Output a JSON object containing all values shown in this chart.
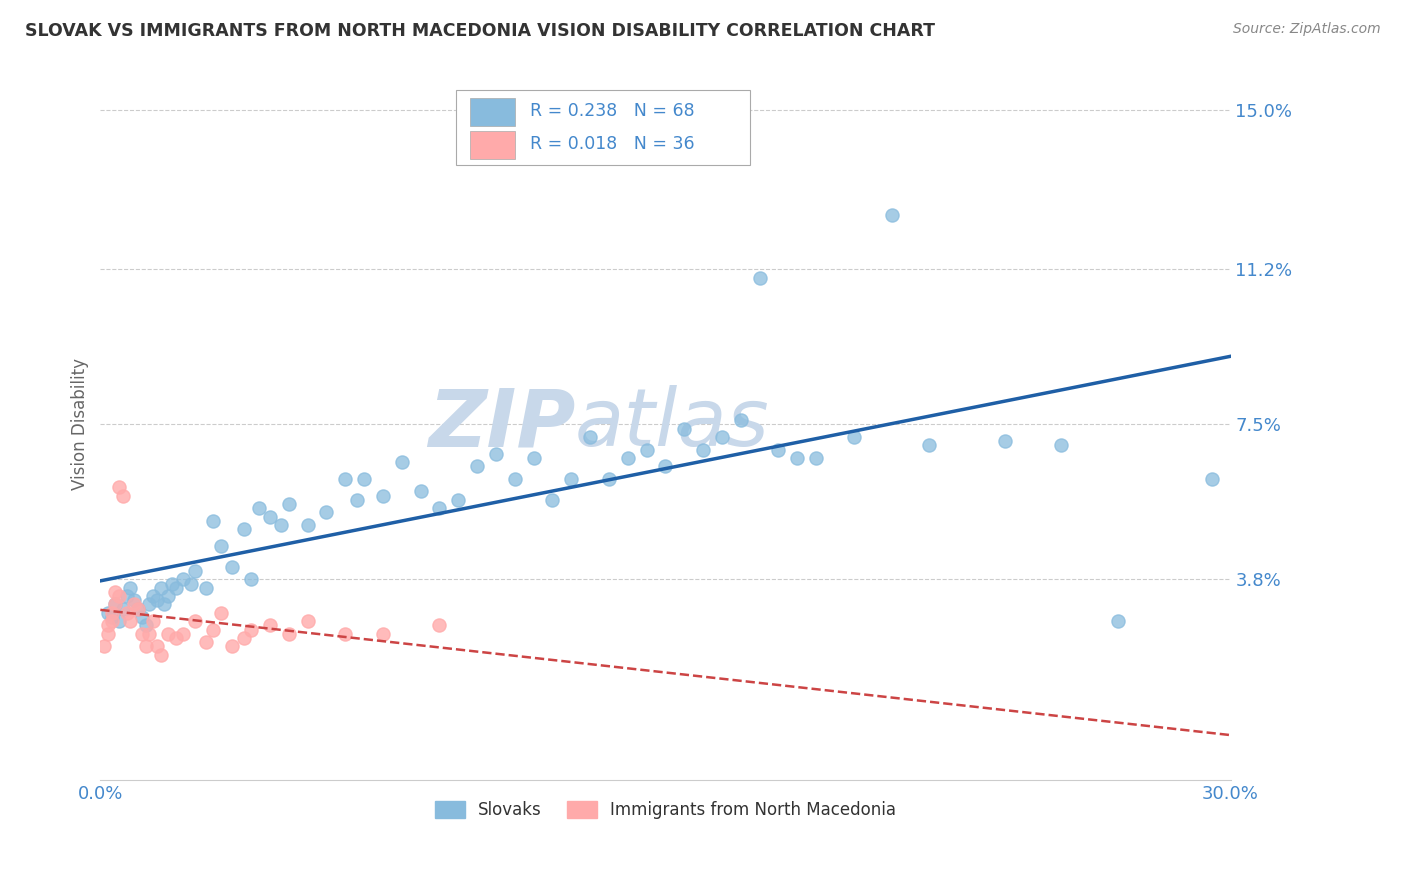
{
  "title": "SLOVAK VS IMMIGRANTS FROM NORTH MACEDONIA VISION DISABILITY CORRELATION CHART",
  "source": "Source: ZipAtlas.com",
  "ylabel": "Vision Disability",
  "xlim": [
    0.0,
    0.3
  ],
  "ylim": [
    -0.01,
    0.16
  ],
  "yticks": [
    0.038,
    0.075,
    0.112,
    0.15
  ],
  "ytick_labels": [
    "3.8%",
    "7.5%",
    "11.2%",
    "15.0%"
  ],
  "xticks": [
    0.0,
    0.3
  ],
  "xtick_labels": [
    "0.0%",
    "30.0%"
  ],
  "grid_color": "#cccccc",
  "background_color": "#ffffff",
  "series1_color": "#88bbdd",
  "series2_color": "#ffaaaa",
  "series1_label": "Slovaks",
  "series2_label": "Immigrants from North Macedonia",
  "series1_R": "0.238",
  "series1_N": "68",
  "series2_R": "0.018",
  "series2_N": "36",
  "series1_line_color": "#1f5fa6",
  "series2_line_color": "#cc4444",
  "title_color": "#333333",
  "axis_label_color": "#666666",
  "tick_label_color": "#4488cc",
  "watermark_color": "#c8d8ea",
  "s1x": [
    0.002,
    0.003,
    0.004,
    0.005,
    0.006,
    0.007,
    0.008,
    0.009,
    0.01,
    0.011,
    0.012,
    0.013,
    0.014,
    0.015,
    0.016,
    0.017,
    0.018,
    0.019,
    0.02,
    0.022,
    0.024,
    0.025,
    0.028,
    0.03,
    0.032,
    0.035,
    0.038,
    0.04,
    0.042,
    0.045,
    0.048,
    0.05,
    0.055,
    0.06,
    0.065,
    0.068,
    0.07,
    0.075,
    0.08,
    0.085,
    0.09,
    0.095,
    0.1,
    0.105,
    0.11,
    0.115,
    0.12,
    0.125,
    0.13,
    0.135,
    0.14,
    0.145,
    0.15,
    0.155,
    0.16,
    0.165,
    0.17,
    0.175,
    0.18,
    0.185,
    0.19,
    0.2,
    0.21,
    0.22,
    0.24,
    0.255,
    0.27,
    0.295
  ],
  "s1y": [
    0.03,
    0.029,
    0.032,
    0.028,
    0.031,
    0.034,
    0.036,
    0.033,
    0.031,
    0.029,
    0.027,
    0.032,
    0.034,
    0.033,
    0.036,
    0.032,
    0.034,
    0.037,
    0.036,
    0.038,
    0.037,
    0.04,
    0.036,
    0.052,
    0.046,
    0.041,
    0.05,
    0.038,
    0.055,
    0.053,
    0.051,
    0.056,
    0.051,
    0.054,
    0.062,
    0.057,
    0.062,
    0.058,
    0.066,
    0.059,
    0.055,
    0.057,
    0.065,
    0.068,
    0.062,
    0.067,
    0.057,
    0.062,
    0.072,
    0.062,
    0.067,
    0.069,
    0.065,
    0.074,
    0.069,
    0.072,
    0.076,
    0.11,
    0.069,
    0.067,
    0.067,
    0.072,
    0.125,
    0.07,
    0.071,
    0.07,
    0.028,
    0.062
  ],
  "s2x": [
    0.001,
    0.002,
    0.002,
    0.003,
    0.003,
    0.004,
    0.004,
    0.005,
    0.005,
    0.006,
    0.007,
    0.008,
    0.009,
    0.01,
    0.011,
    0.012,
    0.013,
    0.014,
    0.015,
    0.016,
    0.018,
    0.02,
    0.022,
    0.025,
    0.028,
    0.03,
    0.032,
    0.035,
    0.038,
    0.04,
    0.045,
    0.05,
    0.055,
    0.065,
    0.075,
    0.09
  ],
  "s2y": [
    0.022,
    0.025,
    0.027,
    0.03,
    0.028,
    0.032,
    0.035,
    0.034,
    0.06,
    0.058,
    0.03,
    0.028,
    0.032,
    0.031,
    0.025,
    0.022,
    0.025,
    0.028,
    0.022,
    0.02,
    0.025,
    0.024,
    0.025,
    0.028,
    0.023,
    0.026,
    0.03,
    0.022,
    0.024,
    0.026,
    0.027,
    0.025,
    0.028,
    0.025,
    0.025,
    0.027
  ]
}
